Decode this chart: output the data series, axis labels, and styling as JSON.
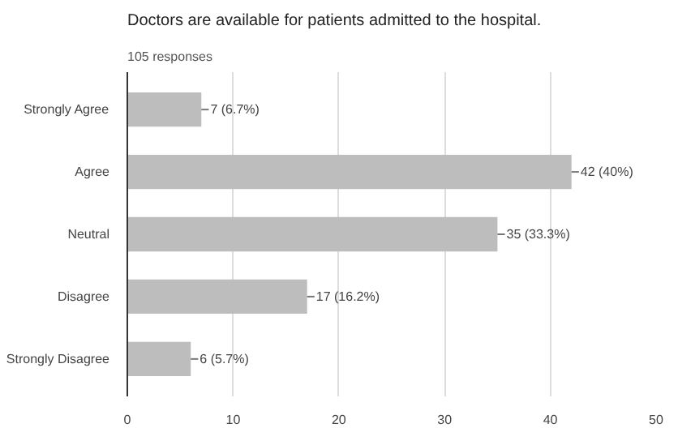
{
  "chart_data": {
    "type": "bar",
    "orientation": "horizontal",
    "title": "Doctors are available for patients admitted to the hospital.",
    "subtitle": "105 responses",
    "categories": [
      "Strongly Agree",
      "Agree",
      "Neutral",
      "Disagree",
      "Strongly Disagree"
    ],
    "values": [
      7,
      42,
      35,
      17,
      6
    ],
    "value_labels": [
      "7 (6.7%)",
      "42 (40%)",
      "35 (33.3%)",
      "17 (16.2%)",
      "6 (5.7%)"
    ],
    "color": "#bdbdbd",
    "xlim": [
      0,
      50
    ],
    "xticks": [
      0,
      10,
      20,
      30,
      40,
      50
    ],
    "grid": "x"
  }
}
